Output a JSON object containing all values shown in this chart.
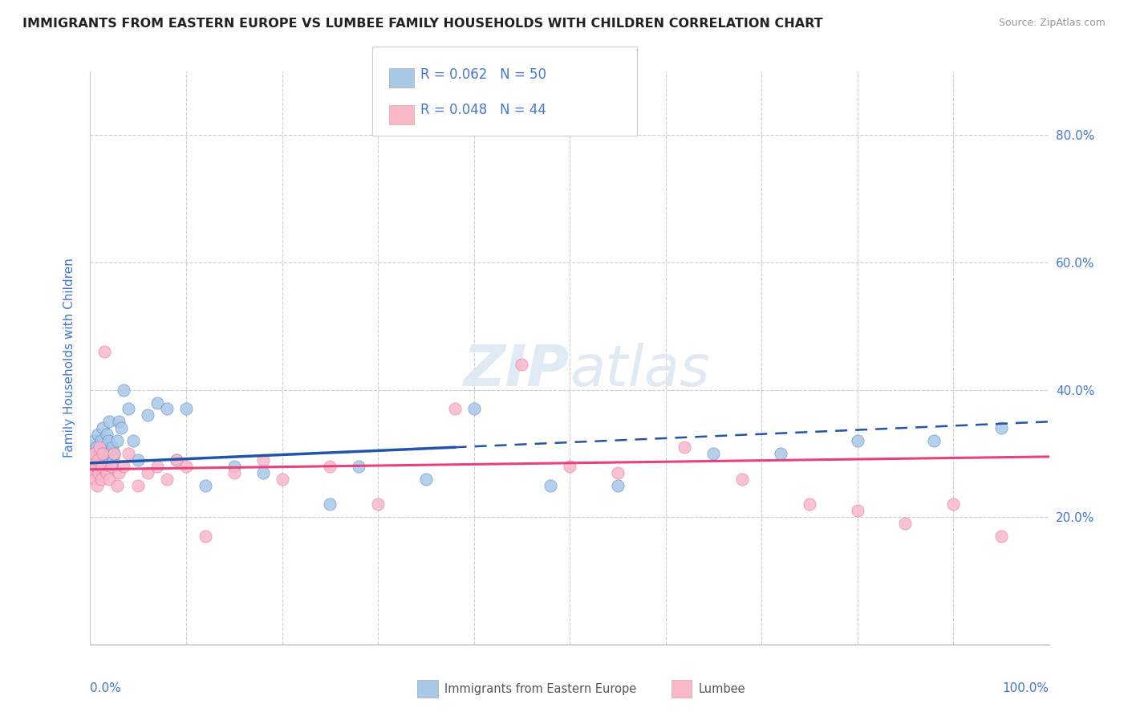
{
  "title": "IMMIGRANTS FROM EASTERN EUROPE VS LUMBEE FAMILY HOUSEHOLDS WITH CHILDREN CORRELATION CHART",
  "source": "Source: ZipAtlas.com",
  "ylabel": "Family Households with Children",
  "legend_blue_text": "R = 0.062  N = 50",
  "legend_pink_text": "R = 0.048  N = 44",
  "legend1_label": "Immigrants from Eastern Europe",
  "legend2_label": "Lumbee",
  "blue_color": "#a8c8e8",
  "pink_color": "#f8b8c8",
  "blue_line_color": "#2255aa",
  "pink_line_color": "#e84080",
  "grid_color": "#cccccc",
  "title_color": "#222222",
  "axis_label_color": "#4477cc",
  "watermark_color": "#dce8f4",
  "blue_scatter_x": [
    0.2,
    0.3,
    0.4,
    0.5,
    0.6,
    0.7,
    0.8,
    0.9,
    1.0,
    1.1,
    1.2,
    1.3,
    1.4,
    1.5,
    1.6,
    1.7,
    1.8,
    1.9,
    2.0,
    2.1,
    2.2,
    2.3,
    2.4,
    2.5,
    2.8,
    3.0,
    3.2,
    3.5,
    4.0,
    4.5,
    5.0,
    6.0,
    7.0,
    8.0,
    9.0,
    10.0,
    12.0,
    15.0,
    18.0,
    25.0,
    28.0,
    35.0,
    40.0,
    48.0,
    55.0,
    65.0,
    72.0,
    80.0,
    88.0,
    95.0
  ],
  "blue_scatter_y": [
    28,
    30,
    32,
    29,
    31,
    27,
    33,
    28,
    30,
    32,
    29,
    34,
    28,
    31,
    30,
    33,
    29,
    32,
    35,
    30,
    28,
    31,
    29,
    30,
    32,
    35,
    34,
    40,
    37,
    32,
    29,
    36,
    38,
    37,
    29,
    37,
    25,
    28,
    27,
    22,
    28,
    26,
    37,
    25,
    25,
    30,
    30,
    32,
    32,
    34
  ],
  "pink_scatter_x": [
    0.2,
    0.3,
    0.4,
    0.5,
    0.6,
    0.7,
    0.8,
    0.9,
    1.0,
    1.1,
    1.2,
    1.3,
    1.5,
    1.7,
    2.0,
    2.2,
    2.5,
    2.8,
    3.0,
    3.5,
    4.0,
    5.0,
    6.0,
    7.0,
    8.0,
    9.0,
    10.0,
    12.0,
    15.0,
    18.0,
    20.0,
    25.0,
    30.0,
    38.0,
    45.0,
    50.0,
    55.0,
    62.0,
    68.0,
    75.0,
    80.0,
    85.0,
    90.0,
    95.0
  ],
  "pink_scatter_y": [
    29,
    27,
    30,
    26,
    28,
    25,
    29,
    27,
    31,
    26,
    28,
    30,
    46,
    27,
    26,
    28,
    30,
    25,
    27,
    28,
    30,
    25,
    27,
    28,
    26,
    29,
    28,
    17,
    27,
    29,
    26,
    28,
    22,
    37,
    44,
    28,
    27,
    31,
    26,
    22,
    21,
    19,
    22,
    17
  ],
  "xlim": [
    0,
    100
  ],
  "ylim": [
    0,
    90
  ],
  "blue_trend_y0": 28.5,
  "blue_trend_y100": 35.0,
  "blue_solid_end_x": 38,
  "pink_trend_y0": 27.5,
  "pink_trend_y100": 29.5,
  "ytick_positions": [
    20,
    40,
    60,
    80
  ],
  "ytick_labels": [
    "20.0%",
    "40.0%",
    "60.0%",
    "80.0%"
  ],
  "xtick_positions": [
    0,
    10,
    20,
    30,
    40,
    50,
    60,
    70,
    80,
    90,
    100
  ]
}
